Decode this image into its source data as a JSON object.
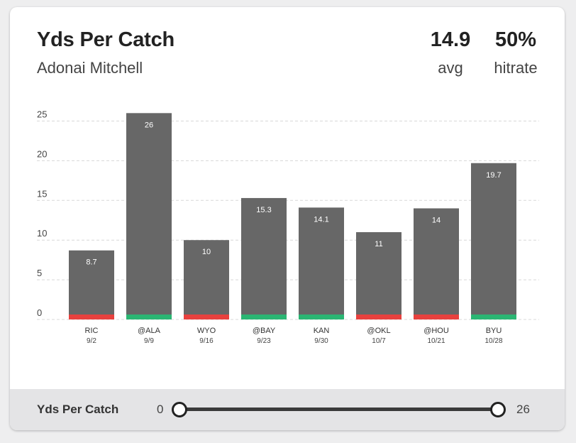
{
  "header": {
    "title": "Yds Per Catch",
    "player": "Adonai Mitchell",
    "avg_value": "14.9",
    "avg_label": "avg",
    "hitrate_value": "50%",
    "hitrate_label": "hitrate"
  },
  "chart_data": {
    "type": "bar",
    "categories": [
      "RIC",
      "@ALA",
      "WYO",
      "@BAY",
      "KAN",
      "@OKL",
      "@HOU",
      "BYU"
    ],
    "dates": [
      "9/2",
      "9/9",
      "9/16",
      "9/23",
      "9/30",
      "10/7",
      "10/21",
      "10/28"
    ],
    "values": [
      8.7,
      26,
      10,
      15.3,
      14.1,
      11,
      14,
      19.7
    ],
    "value_labels": [
      "8.7",
      "26",
      "10",
      "15.3",
      "14.1",
      "11",
      "14",
      "19.7"
    ],
    "hit": [
      false,
      true,
      false,
      true,
      true,
      false,
      false,
      true
    ],
    "yticks": [
      0,
      5,
      10,
      15,
      20,
      25
    ],
    "ylim": [
      0,
      26
    ],
    "grid": true,
    "colors": {
      "bar": "#676767",
      "hit": "#2bb673",
      "miss": "#e8413e",
      "grid": "#d8d8d8"
    }
  },
  "filter": {
    "label": "Yds Per Catch",
    "min": "0",
    "max": "26"
  }
}
